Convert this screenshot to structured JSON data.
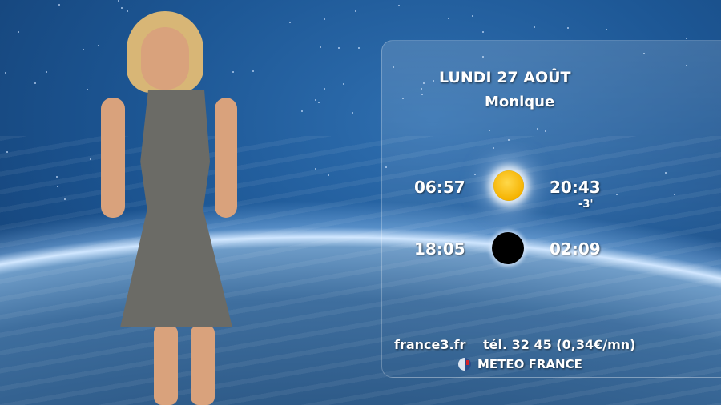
{
  "broadcast": {
    "date": "LUNDI 27 AOÛT",
    "saint": "Monique",
    "sun": {
      "icon": "sun-icon",
      "sunrise": "06:57",
      "sunset": "20:43",
      "daylight_change": "-3'"
    },
    "moon": {
      "icon": "new-moon-icon",
      "moonrise": "18:05",
      "moonset": "02:09"
    },
    "footer": {
      "website": "france3.fr",
      "phone": "tél. 32 45 (0,34€/mn)",
      "partner": "METEO FRANCE",
      "partner_icon": "meteo-france-logo"
    }
  }
}
